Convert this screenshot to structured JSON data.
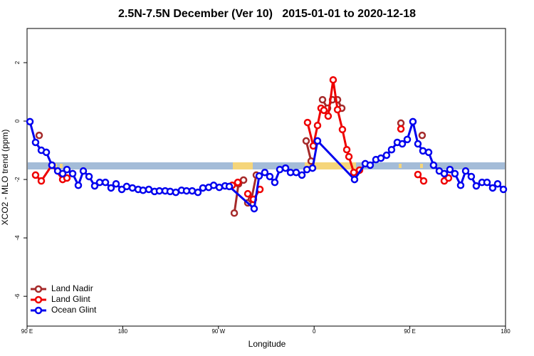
{
  "chart_data": {
    "type": "line",
    "title": "2.5N-7.5N December (Ver 10)   2015-01-01 to 2020-12-18",
    "x_label": "Longitude",
    "y_label": "XCO2 - MLO trend (ppm)",
    "xlim": [
      90,
      540
    ],
    "xticks": [
      {
        "value": 90,
        "label": "90 E"
      },
      {
        "value": 180,
        "label": "180"
      },
      {
        "value": 270,
        "label": "90 W"
      },
      {
        "value": 360,
        "label": "0"
      },
      {
        "value": 450,
        "label": "90 E"
      },
      {
        "value": 540,
        "label": "180"
      }
    ],
    "ylim": [
      -7.02,
      3.17
    ],
    "yticks": [
      -6,
      -4,
      -2,
      0,
      2
    ],
    "legend": "bottom-left",
    "series": [
      {
        "name": "Land Nadir",
        "color": "#a52a2a",
        "x": [
          101.4,
          null,
          284.9,
          288.9,
          293.6,
          null,
          297.6,
          301.0,
          305.6,
          null,
          352.5,
          357.2,
          null,
          367.9,
          372.6,
          377.3,
          382.0,
          386.0,
          null,
          441.6,
          null,
          461.6
        ],
        "values": [
          -0.49,
          null,
          -3.15,
          -2.15,
          -2.02,
          null,
          -2.8,
          -2.68,
          -1.85,
          null,
          -0.68,
          -1.37,
          null,
          0.73,
          0.44,
          0.73,
          0.73,
          0.44,
          null,
          -0.07,
          null,
          -0.49
        ]
      },
      {
        "name": "Land Glint",
        "color": "#ee0000",
        "x": [
          98.0,
          103.4,
          113.4,
          123.5,
          127.5,
          null,
          282.9,
          288.2,
          null,
          297.6,
          302.9,
          309.0,
          null,
          353.8,
          359.2,
          363.2,
          366.5,
          369.2,
          373.2,
          377.9,
          382.0,
          386.6,
          390.7,
          392.7,
          397.3,
          402.7,
          null,
          441.6,
          null,
          457.6,
          463.0,
          null,
          482.4,
          486.4
        ],
        "values": [
          -1.85,
          -2.05,
          -1.51,
          -2.0,
          -1.95,
          null,
          -2.2,
          -2.1,
          null,
          -2.49,
          -2.68,
          -2.34,
          null,
          -0.05,
          -0.85,
          -0.15,
          0.44,
          0.37,
          0.17,
          1.41,
          0.39,
          -0.29,
          -0.98,
          -1.22,
          -1.76,
          -1.68,
          null,
          -0.27,
          null,
          -1.83,
          -2.05,
          null,
          -2.05,
          -1.95
        ]
      },
      {
        "name": "Ocean Glint",
        "color": "#0000ee",
        "x": [
          92.7,
          98.0,
          103.4,
          108.1,
          113.4,
          118.8,
          123.5,
          127.5,
          132.9,
          138.2,
          142.9,
          148.3,
          153.6,
          158.3,
          163.7,
          169.0,
          173.7,
          179.1,
          183.7,
          189.1,
          194.5,
          199.1,
          204.5,
          209.9,
          214.5,
          219.9,
          224.6,
          229.9,
          235.3,
          240.0,
          245.3,
          250.7,
          255.4,
          260.8,
          265.5,
          270.8,
          276.2,
          280.2,
          303.6,
          308.3,
          313.6,
          318.3,
          323.0,
          327.7,
          333.1,
          337.8,
          343.1,
          348.5,
          353.2,
          358.5,
          363.2,
          398.0,
          408.1,
          412.7,
          418.1,
          422.8,
          428.1,
          432.8,
          438.2,
          442.9,
          447.6,
          452.9,
          457.6,
          462.3,
          467.7,
          472.3,
          477.7,
          482.4,
          487.7,
          492.4,
          497.8,
          502.5,
          507.8,
          512.5,
          517.9,
          522.6,
          527.9,
          532.6,
          538.0
        ],
        "values": [
          -0.02,
          -0.73,
          -1.0,
          -1.07,
          -1.51,
          -1.71,
          -1.8,
          -1.66,
          -1.8,
          -2.2,
          -1.71,
          -1.9,
          -2.22,
          -2.1,
          -2.1,
          -2.29,
          -2.15,
          -2.34,
          -2.24,
          -2.29,
          -2.34,
          -2.37,
          -2.34,
          -2.41,
          -2.39,
          -2.39,
          -2.41,
          -2.44,
          -2.37,
          -2.39,
          -2.39,
          -2.44,
          -2.29,
          -2.27,
          -2.2,
          -2.27,
          -2.22,
          -2.24,
          -3.0,
          -1.88,
          -1.76,
          -1.9,
          -2.1,
          -1.66,
          -1.61,
          -1.76,
          -1.76,
          -1.85,
          -1.66,
          -1.61,
          -0.68,
          -2.0,
          -1.46,
          -1.51,
          -1.32,
          -1.27,
          -1.17,
          -0.98,
          -0.73,
          -0.78,
          -0.63,
          -0.02,
          -0.78,
          -1.02,
          -1.07,
          -1.51,
          -1.71,
          -1.8,
          -1.66,
          -1.8,
          -2.2,
          -1.71,
          -1.9,
          -2.22,
          -2.1,
          -2.1,
          -2.29,
          -2.15,
          -2.34
        ]
      }
    ]
  }
}
